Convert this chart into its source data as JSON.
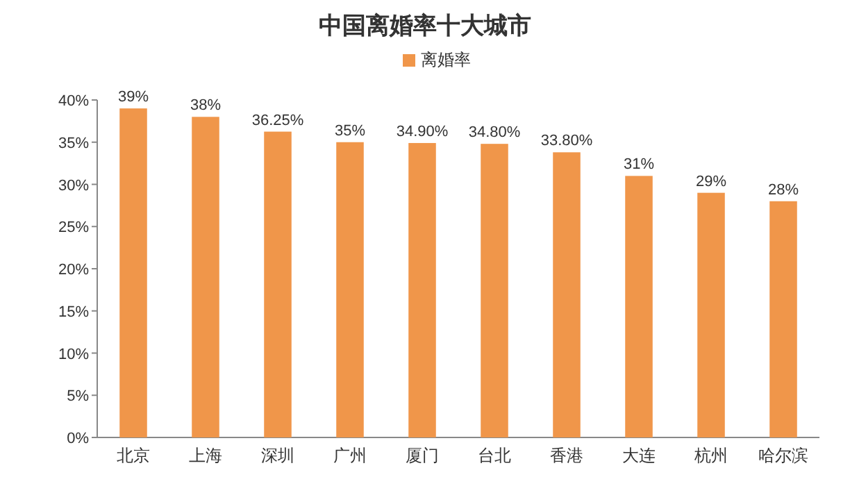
{
  "chart_data": {
    "type": "bar",
    "title": "中国离婚率十大城市",
    "categories": [
      "北京",
      "上海",
      "深圳",
      "广州",
      "厦门",
      "台北",
      "香港",
      "大连",
      "杭州",
      "哈尔滨"
    ],
    "series": [
      {
        "name": "离婚率",
        "color": "#f0964a",
        "values": [
          39,
          38,
          36.25,
          35,
          34.9,
          34.8,
          33.8,
          31,
          29,
          28
        ],
        "value_labels": [
          "39%",
          "38%",
          "36.25%",
          "35%",
          "34.90%",
          "34.80%",
          "33.80%",
          "31%",
          "29%",
          "28%"
        ]
      }
    ],
    "ylim": [
      0,
      40
    ],
    "yticks": [
      {
        "value": 0,
        "label": "0%"
      },
      {
        "value": 5,
        "label": "5%"
      },
      {
        "value": 10,
        "label": "10%"
      },
      {
        "value": 15,
        "label": "15%"
      },
      {
        "value": 20,
        "label": "20%"
      },
      {
        "value": 25,
        "label": "25%"
      },
      {
        "value": 30,
        "label": "30%"
      },
      {
        "value": 35,
        "label": "35%"
      },
      {
        "value": 40,
        "label": "40%"
      }
    ],
    "legend": "top",
    "grid": false
  }
}
